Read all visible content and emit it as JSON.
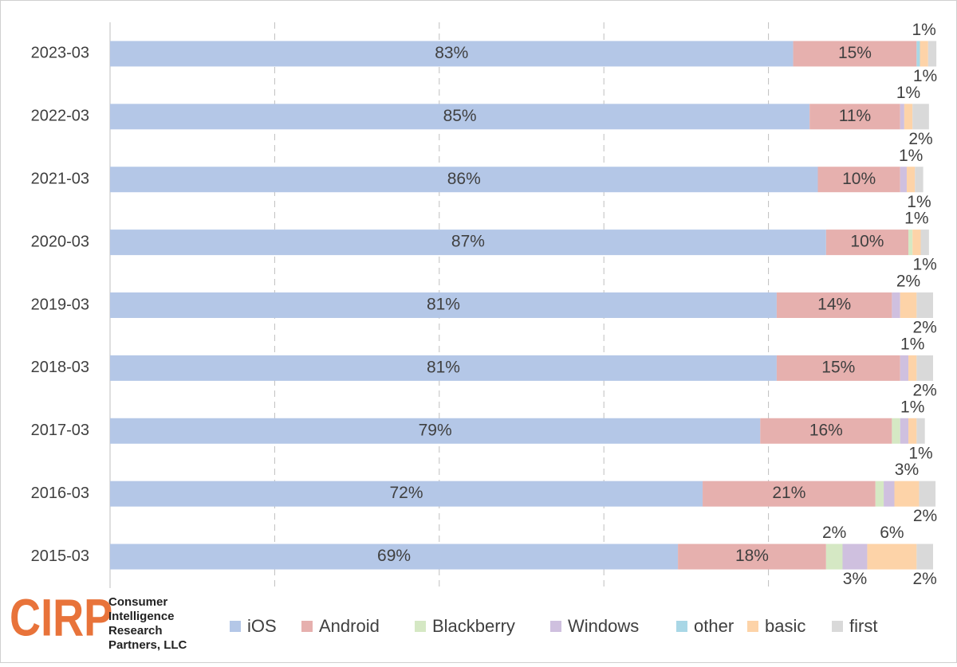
{
  "chart_data": {
    "type": "stacked-bar-horizontal",
    "categories": [
      "2023-03",
      "2022-03",
      "2021-03",
      "2020-03",
      "2019-03",
      "2018-03",
      "2017-03",
      "2016-03",
      "2015-03"
    ],
    "xlim": [
      0,
      100
    ],
    "xticks": [
      0,
      20,
      40,
      60,
      80,
      100
    ],
    "grid": true,
    "series": [
      {
        "name": "iOS",
        "color": "#b4c7e7",
        "values": [
          83,
          85,
          86,
          87,
          81,
          81,
          79,
          72,
          69
        ],
        "value_labels": [
          "83%",
          "85%",
          "86%",
          "87%",
          "81%",
          "81%",
          "79%",
          "72%",
          "69%"
        ]
      },
      {
        "name": "Android",
        "color": "#e6b0ae",
        "values": [
          15,
          11,
          10,
          10,
          14,
          15,
          16,
          21,
          18
        ],
        "value_labels": [
          "15%",
          "11%",
          "10%",
          "10%",
          "14%",
          "15%",
          "16%",
          "21%",
          "18%"
        ]
      },
      {
        "name": "Blackberry",
        "color": "#d5e8c4",
        "values": [
          0,
          0,
          0,
          0.5,
          0,
          0,
          1,
          1,
          2
        ],
        "value_labels": [
          null,
          null,
          null,
          null,
          null,
          null,
          null,
          null,
          "2%"
        ]
      },
      {
        "name": "Windows",
        "color": "#cfc0df",
        "values": [
          0,
          0.5,
          0.8,
          0,
          1,
          1,
          1,
          1.3,
          3
        ],
        "value_labels": [
          null,
          null,
          null,
          null,
          null,
          null,
          null,
          null,
          "3%"
        ]
      },
      {
        "name": "other",
        "color": "#a9d7e6",
        "values": [
          0.4,
          0,
          0,
          0,
          0,
          0,
          0,
          0,
          0
        ],
        "value_labels": [
          null,
          null,
          null,
          null,
          null,
          null,
          null,
          null,
          null
        ]
      },
      {
        "name": "basic",
        "color": "#fdd3a8",
        "values": [
          1,
          1,
          1,
          1,
          2,
          1,
          1,
          3,
          6
        ],
        "value_labels": [
          "1%",
          "1%",
          "1%",
          "1%",
          "2%",
          "1%",
          "1%",
          "3%",
          "6%"
        ]
      },
      {
        "name": "first",
        "color": "#d9d9d9",
        "values": [
          1,
          2,
          1,
          1,
          2,
          2,
          1,
          2,
          2
        ],
        "value_labels": [
          "1%",
          "2%",
          "1%",
          "1%",
          "2%",
          "2%",
          "1%",
          "2%",
          "2%"
        ]
      }
    ]
  },
  "logo": {
    "mark": "CIRP",
    "lines": [
      "Consumer",
      "Intelligence",
      "Research",
      "Partners, LLC"
    ]
  }
}
